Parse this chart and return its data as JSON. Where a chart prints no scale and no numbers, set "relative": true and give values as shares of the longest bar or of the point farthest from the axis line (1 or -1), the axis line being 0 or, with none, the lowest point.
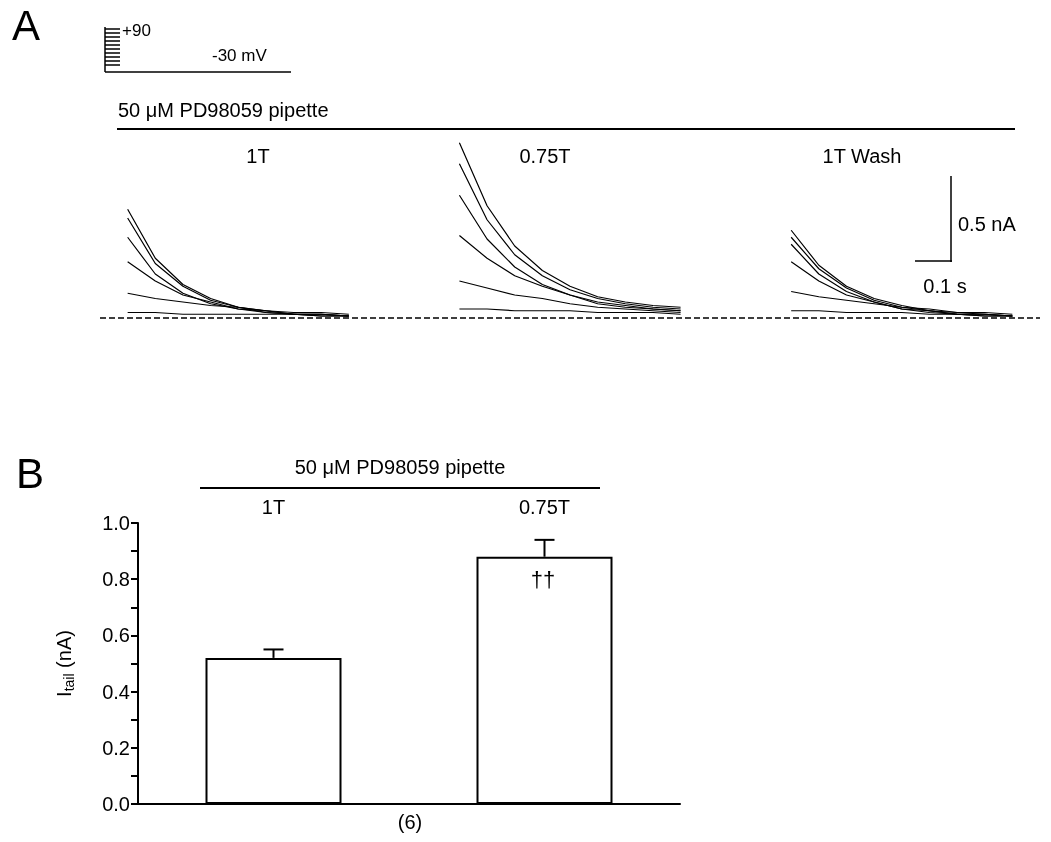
{
  "chart_data": [
    {
      "type": "line",
      "relative": true,
      "title": "50 μM PD98059 pipette",
      "marker": "none",
      "categories": [
        null,
        null,
        null,
        null,
        null,
        null,
        null,
        null,
        null,
        null,
        null,
        null,
        null,
        null,
        null,
        null,
        null,
        null,
        null,
        null,
        null,
        null,
        null,
        null,
        null,
        null,
        null,
        null,
        null,
        null,
        null,
        null,
        null,
        null,
        null
      ],
      "annotations": [
        "A",
        "+90",
        "-30 mV",
        "1T",
        "0.75T",
        "1T Wash",
        "0.5 nA",
        "0.1 s"
      ],
      "ref_lines": [
        {
          "axis": "y",
          "value": 0,
          "line_style": "dashed",
          "color": "#000000"
        }
      ],
      "series": [
        {
          "color": "#000000",
          "values": [
            null,
            0.62,
            0.34,
            0.19,
            0.11,
            0.06,
            0.04,
            0.02,
            0.02,
            0.01,
            null,
            null,
            null,
            null,
            null,
            null,
            null,
            null,
            null,
            null,
            null,
            null,
            null,
            null,
            null,
            null,
            null,
            null,
            null,
            null,
            null,
            null,
            null,
            null,
            null
          ]
        },
        {
          "color": "#000000",
          "values": [
            null,
            0.57,
            0.31,
            0.18,
            0.1,
            0.06,
            0.03,
            0.02,
            0.02,
            0.01,
            null,
            null,
            null,
            null,
            null,
            null,
            null,
            null,
            null,
            null,
            null,
            null,
            null,
            null,
            null,
            null,
            null,
            null,
            null,
            null,
            null,
            null,
            null,
            null,
            null
          ]
        },
        {
          "color": "#000000",
          "values": [
            null,
            0.46,
            0.25,
            0.14,
            0.08,
            0.05,
            0.03,
            0.02,
            0.01,
            0.01,
            null,
            null,
            null,
            null,
            null,
            null,
            null,
            null,
            null,
            null,
            null,
            null,
            null,
            null,
            null,
            null,
            null,
            null,
            null,
            null,
            null,
            null,
            null,
            null,
            null
          ]
        },
        {
          "color": "#000000",
          "values": [
            null,
            0.32,
            0.21,
            0.13,
            0.09,
            0.05,
            0.04,
            0.02,
            0.02,
            0.01,
            null,
            null,
            null,
            null,
            null,
            null,
            null,
            null,
            null,
            null,
            null,
            null,
            null,
            null,
            null,
            null,
            null,
            null,
            null,
            null,
            null,
            null,
            null,
            null,
            null
          ]
        },
        {
          "color": "#000000",
          "values": [
            null,
            0.14,
            0.11,
            0.09,
            0.07,
            0.06,
            0.04,
            0.03,
            0.03,
            0.02,
            null,
            null,
            null,
            null,
            null,
            null,
            null,
            null,
            null,
            null,
            null,
            null,
            null,
            null,
            null,
            null,
            null,
            null,
            null,
            null,
            null,
            null,
            null,
            null,
            null
          ]
        },
        {
          "color": "#000000",
          "values": [
            null,
            0.03,
            0.03,
            0.02,
            0.02,
            0.02,
            0.02,
            0.02,
            0.01,
            0.01,
            null,
            null,
            null,
            null,
            null,
            null,
            null,
            null,
            null,
            null,
            null,
            null,
            null,
            null,
            null,
            null,
            null,
            null,
            null,
            null,
            null,
            null,
            null,
            null,
            null
          ]
        },
        {
          "color": "#000000",
          "values": [
            null,
            null,
            null,
            null,
            null,
            null,
            null,
            null,
            null,
            null,
            null,
            null,
            null,
            1,
            0.64,
            0.41,
            0.27,
            0.18,
            0.12,
            0.09,
            0.07,
            0.06,
            null,
            null,
            null,
            null,
            null,
            null,
            null,
            null,
            null,
            null,
            null,
            null,
            null
          ]
        },
        {
          "color": "#000000",
          "values": [
            null,
            null,
            null,
            null,
            null,
            null,
            null,
            null,
            null,
            null,
            null,
            null,
            null,
            0.88,
            0.56,
            0.36,
            0.24,
            0.16,
            0.11,
            0.08,
            0.06,
            0.05,
            null,
            null,
            null,
            null,
            null,
            null,
            null,
            null,
            null,
            null,
            null,
            null,
            null
          ]
        },
        {
          "color": "#000000",
          "values": [
            null,
            null,
            null,
            null,
            null,
            null,
            null,
            null,
            null,
            null,
            null,
            null,
            null,
            0.7,
            0.45,
            0.29,
            0.19,
            0.13,
            0.08,
            0.06,
            0.05,
            0.04,
            null,
            null,
            null,
            null,
            null,
            null,
            null,
            null,
            null,
            null,
            null,
            null,
            null
          ]
        },
        {
          "color": "#000000",
          "values": [
            null,
            null,
            null,
            null,
            null,
            null,
            null,
            null,
            null,
            null,
            null,
            null,
            null,
            0.47,
            0.34,
            0.24,
            0.18,
            0.13,
            0.09,
            0.07,
            0.05,
            0.04,
            null,
            null,
            null,
            null,
            null,
            null,
            null,
            null,
            null,
            null,
            null,
            null,
            null
          ]
        },
        {
          "color": "#000000",
          "values": [
            null,
            null,
            null,
            null,
            null,
            null,
            null,
            null,
            null,
            null,
            null,
            null,
            null,
            0.21,
            0.17,
            0.13,
            0.11,
            0.08,
            0.06,
            0.05,
            0.04,
            0.03,
            null,
            null,
            null,
            null,
            null,
            null,
            null,
            null,
            null,
            null,
            null,
            null,
            null
          ]
        },
        {
          "color": "#000000",
          "values": [
            null,
            null,
            null,
            null,
            null,
            null,
            null,
            null,
            null,
            null,
            null,
            null,
            null,
            0.05,
            0.05,
            0.04,
            0.04,
            0.04,
            0.03,
            0.03,
            0.03,
            0.02,
            null,
            null,
            null,
            null,
            null,
            null,
            null,
            null,
            null,
            null,
            null,
            null,
            null
          ]
        },
        {
          "color": "#000000",
          "values": [
            null,
            null,
            null,
            null,
            null,
            null,
            null,
            null,
            null,
            null,
            null,
            null,
            null,
            null,
            null,
            null,
            null,
            null,
            null,
            null,
            null,
            null,
            null,
            null,
            null,
            0.5,
            0.3,
            0.18,
            0.11,
            0.07,
            0.04,
            0.03,
            0.02,
            0.01,
            null
          ]
        },
        {
          "color": "#000000",
          "values": [
            null,
            null,
            null,
            null,
            null,
            null,
            null,
            null,
            null,
            null,
            null,
            null,
            null,
            null,
            null,
            null,
            null,
            null,
            null,
            null,
            null,
            null,
            null,
            null,
            null,
            0.46,
            0.28,
            0.17,
            0.1,
            0.06,
            0.04,
            0.02,
            0.01,
            0.01,
            null
          ]
        },
        {
          "color": "#000000",
          "values": [
            null,
            null,
            null,
            null,
            null,
            null,
            null,
            null,
            null,
            null,
            null,
            null,
            null,
            null,
            null,
            null,
            null,
            null,
            null,
            null,
            null,
            null,
            null,
            null,
            null,
            0.42,
            0.25,
            0.15,
            0.09,
            0.05,
            0.03,
            0.02,
            0.01,
            0.01,
            null
          ]
        },
        {
          "color": "#000000",
          "values": [
            null,
            null,
            null,
            null,
            null,
            null,
            null,
            null,
            null,
            null,
            null,
            null,
            null,
            null,
            null,
            null,
            null,
            null,
            null,
            null,
            null,
            null,
            null,
            null,
            null,
            0.32,
            0.21,
            0.13,
            0.09,
            0.05,
            0.04,
            0.02,
            0.02,
            0.01,
            null
          ]
        },
        {
          "color": "#000000",
          "values": [
            null,
            null,
            null,
            null,
            null,
            null,
            null,
            null,
            null,
            null,
            null,
            null,
            null,
            null,
            null,
            null,
            null,
            null,
            null,
            null,
            null,
            null,
            null,
            null,
            null,
            0.15,
            0.12,
            0.1,
            0.08,
            0.06,
            0.05,
            0.03,
            0.03,
            0.02,
            null
          ]
        },
        {
          "color": "#000000",
          "values": [
            null,
            null,
            null,
            null,
            null,
            null,
            null,
            null,
            null,
            null,
            null,
            null,
            null,
            null,
            null,
            null,
            null,
            null,
            null,
            null,
            null,
            null,
            null,
            null,
            null,
            0.04,
            0.04,
            0.03,
            0.03,
            0.03,
            0.02,
            0.02,
            0.02,
            0.01,
            null
          ]
        }
      ]
    },
    {
      "type": "bar",
      "title": "50 μM PD98059 pipette",
      "ylabel": "I$_{tail}$ (nA)",
      "categories": [
        "1T",
        "0.75T"
      ],
      "values": [
        0.52,
        0.88
      ],
      "color": "#ffffff",
      "errors": [
        [
          0.52,
          0.55
        ],
        [
          0.88,
          0.94
        ]
      ],
      "ylim": [
        0,
        1
      ],
      "yticks": [
        {
          "value": 0,
          "label": "0.0"
        },
        {
          "value": 0.1,
          "label": null
        },
        {
          "value": 0.2,
          "label": "0.2"
        },
        {
          "value": 0.3,
          "label": null
        },
        {
          "value": 0.4,
          "label": "0.4"
        },
        {
          "value": 0.5,
          "label": null
        },
        {
          "value": 0.6,
          "label": "0.6"
        },
        {
          "value": 0.7,
          "label": null
        },
        {
          "value": 0.8,
          "label": "0.8"
        },
        {
          "value": 0.9,
          "label": null
        },
        {
          "value": 1,
          "label": "1.0"
        }
      ],
      "annotations": [
        "B",
        "††",
        "(6)"
      ]
    }
  ]
}
